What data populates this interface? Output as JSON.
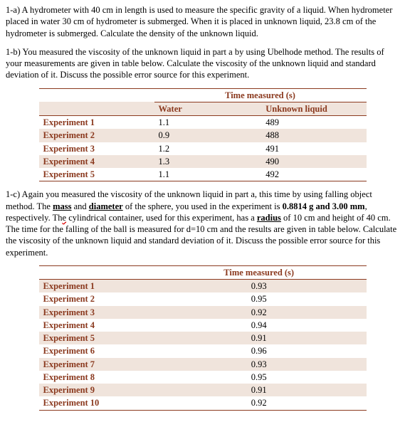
{
  "para_a": "1-a) A hydrometer with 40 cm in length is used to measure the specific gravity of a liquid.  When hydrometer placed in water 30 cm of hydrometer is submerged. When it is placed in unknown liquid, 23.8 cm of the hydrometer is submerged. Calculate the density of the unknown liquid.",
  "para_b": "1-b) You measured the viscosity of the unknown liquid in part a by using Ubelhode method. The results of your measurements are given in table below. Calculate the viscosity of the unknown liquid and standard deviation of it. Discuss the possible error source for this experiment.",
  "para_c_pre": "1-c) Again you measured the viscosity of the unknown liquid in part a, this time by using falling object method. The ",
  "para_c_mass": "mass",
  "para_c_and": " and ",
  "para_c_diameter": "diameter",
  "para_c_mid1": " of the sphere, you used in the experiment is ",
  "para_c_val1": "0.8814 g and 3.00 mm",
  "para_c_mid2": ", respectively. Th",
  "para_c_typo": "e",
  "para_c_mid3": " cylindrical container, used for this experiment, has a ",
  "para_c_radius": "radius",
  "para_c_end": " of 10 cm and height of 40 cm. The time for the falling of the ball is measured for d=10 cm and the results are given in table below. Calculate the viscosity of the unknown liquid and standard deviation of it. Discuss the possible error source for this experiment.",
  "table1": {
    "time_header": "Time measured (s)",
    "col_water": "Water",
    "col_unknown": "Unknown liquid",
    "rows": [
      {
        "label": "Experiment 1",
        "water": "1.1",
        "unknown": "489"
      },
      {
        "label": "Experiment 2",
        "water": "0.9",
        "unknown": "488"
      },
      {
        "label": "Experiment 3",
        "water": "1.2",
        "unknown": "491"
      },
      {
        "label": "Experiment 4",
        "water": "1.3",
        "unknown": "490"
      },
      {
        "label": "Experiment 5",
        "water": "1.1",
        "unknown": "492"
      }
    ]
  },
  "table2": {
    "time_header": "Time measured (s)",
    "rows": [
      {
        "label": "Experiment 1",
        "t": "0.93"
      },
      {
        "label": "Experiment 2",
        "t": "0.95"
      },
      {
        "label": "Experiment 3",
        "t": "0.92"
      },
      {
        "label": "Experiment 4",
        "t": "0.94"
      },
      {
        "label": "Experiment 5",
        "t": "0.91"
      },
      {
        "label": "Experiment 6",
        "t": "0.96"
      },
      {
        "label": "Experiment 7",
        "t": "0.93"
      },
      {
        "label": "Experiment 8",
        "t": "0.95"
      },
      {
        "label": "Experiment 9",
        "t": "0.91"
      },
      {
        "label": "Experiment 10",
        "t": "0.92"
      }
    ]
  }
}
